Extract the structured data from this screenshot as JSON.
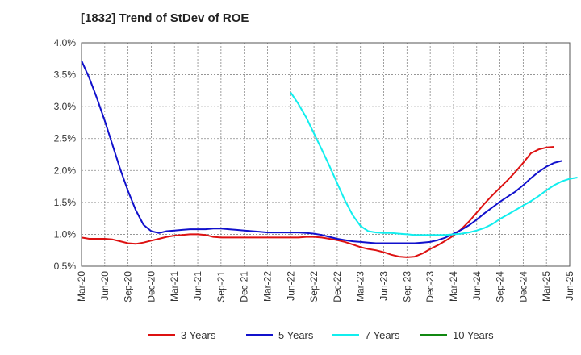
{
  "chart_data": {
    "type": "line",
    "title": "[1832]  Trend of StDev of ROE",
    "xlabel": "",
    "ylabel": "",
    "x_ticks": [
      "Mar-20",
      "Jun-20",
      "Sep-20",
      "Dec-20",
      "Mar-21",
      "Jun-21",
      "Sep-21",
      "Dec-21",
      "Mar-22",
      "Jun-22",
      "Sep-22",
      "Dec-22",
      "Mar-23",
      "Jun-23",
      "Sep-23",
      "Dec-23",
      "Mar-24",
      "Jun-24",
      "Sep-24",
      "Dec-24",
      "Mar-25",
      "Jun-25"
    ],
    "y_ticks": [
      "0.5%",
      "1.0%",
      "1.5%",
      "2.0%",
      "2.5%",
      "3.0%",
      "3.5%",
      "4.0%"
    ],
    "ylim": [
      0.5,
      4.0
    ],
    "grid": true,
    "legend_position": "bottom",
    "series": [
      {
        "name": "3 Years",
        "color": "#dd1111",
        "points": [
          [
            0,
            0.95
          ],
          [
            1,
            0.93
          ],
          [
            2,
            0.93
          ],
          [
            3,
            0.93
          ],
          [
            4,
            0.92
          ],
          [
            5,
            0.89
          ],
          [
            6,
            0.86
          ],
          [
            7,
            0.85
          ],
          [
            8,
            0.87
          ],
          [
            9,
            0.9
          ],
          [
            10,
            0.93
          ],
          [
            11,
            0.96
          ],
          [
            12,
            0.98
          ],
          [
            13,
            0.99
          ],
          [
            14,
            1.0
          ],
          [
            15,
            1.0
          ],
          [
            16,
            0.99
          ],
          [
            17,
            0.96
          ],
          [
            18,
            0.95
          ],
          [
            19,
            0.95
          ],
          [
            20,
            0.95
          ],
          [
            21,
            0.95
          ],
          [
            22,
            0.95
          ],
          [
            23,
            0.95
          ],
          [
            24,
            0.95
          ],
          [
            25,
            0.95
          ],
          [
            26,
            0.95
          ],
          [
            27,
            0.95
          ],
          [
            28,
            0.95
          ],
          [
            29,
            0.96
          ],
          [
            30,
            0.96
          ],
          [
            31,
            0.95
          ],
          [
            32,
            0.93
          ],
          [
            33,
            0.91
          ],
          [
            34,
            0.88
          ],
          [
            35,
            0.84
          ],
          [
            36,
            0.8
          ],
          [
            37,
            0.77
          ],
          [
            38,
            0.75
          ],
          [
            39,
            0.72
          ],
          [
            40,
            0.68
          ],
          [
            41,
            0.65
          ],
          [
            42,
            0.64
          ],
          [
            43,
            0.65
          ],
          [
            44,
            0.7
          ],
          [
            45,
            0.77
          ],
          [
            46,
            0.83
          ],
          [
            47,
            0.9
          ],
          [
            48,
            0.98
          ],
          [
            49,
            1.08
          ],
          [
            50,
            1.2
          ],
          [
            51,
            1.34
          ],
          [
            52,
            1.48
          ],
          [
            53,
            1.61
          ],
          [
            54,
            1.73
          ],
          [
            55,
            1.85
          ],
          [
            56,
            1.98
          ],
          [
            57,
            2.12
          ],
          [
            58,
            2.27
          ],
          [
            59,
            2.33
          ],
          [
            60,
            2.36
          ],
          [
            61,
            2.37
          ]
        ]
      },
      {
        "name": "5 Years",
        "color": "#1111cc",
        "points": [
          [
            0,
            3.72
          ],
          [
            1,
            3.45
          ],
          [
            2,
            3.13
          ],
          [
            3,
            2.78
          ],
          [
            4,
            2.4
          ],
          [
            5,
            2.02
          ],
          [
            6,
            1.68
          ],
          [
            7,
            1.38
          ],
          [
            8,
            1.15
          ],
          [
            9,
            1.05
          ],
          [
            10,
            1.02
          ],
          [
            11,
            1.05
          ],
          [
            12,
            1.06
          ],
          [
            13,
            1.07
          ],
          [
            14,
            1.08
          ],
          [
            15,
            1.08
          ],
          [
            16,
            1.08
          ],
          [
            17,
            1.09
          ],
          [
            18,
            1.09
          ],
          [
            19,
            1.08
          ],
          [
            20,
            1.07
          ],
          [
            21,
            1.06
          ],
          [
            22,
            1.05
          ],
          [
            23,
            1.04
          ],
          [
            24,
            1.03
          ],
          [
            25,
            1.03
          ],
          [
            26,
            1.03
          ],
          [
            27,
            1.03
          ],
          [
            28,
            1.03
          ],
          [
            29,
            1.02
          ],
          [
            30,
            1.01
          ],
          [
            31,
            0.99
          ],
          [
            32,
            0.96
          ],
          [
            33,
            0.93
          ],
          [
            34,
            0.91
          ],
          [
            35,
            0.89
          ],
          [
            36,
            0.88
          ],
          [
            37,
            0.87
          ],
          [
            38,
            0.86
          ],
          [
            39,
            0.86
          ],
          [
            40,
            0.86
          ],
          [
            41,
            0.86
          ],
          [
            42,
            0.86
          ],
          [
            43,
            0.86
          ],
          [
            44,
            0.87
          ],
          [
            45,
            0.88
          ],
          [
            46,
            0.91
          ],
          [
            47,
            0.95
          ],
          [
            48,
            1.01
          ],
          [
            49,
            1.07
          ],
          [
            50,
            1.14
          ],
          [
            51,
            1.23
          ],
          [
            52,
            1.33
          ],
          [
            53,
            1.42
          ],
          [
            54,
            1.51
          ],
          [
            55,
            1.59
          ],
          [
            56,
            1.67
          ],
          [
            57,
            1.77
          ],
          [
            58,
            1.88
          ],
          [
            59,
            1.98
          ],
          [
            60,
            2.06
          ],
          [
            61,
            2.12
          ],
          [
            62,
            2.15
          ]
        ]
      },
      {
        "name": "7 Years",
        "color": "#11eeee",
        "points": [
          [
            27,
            3.22
          ],
          [
            28,
            3.04
          ],
          [
            29,
            2.83
          ],
          [
            30,
            2.58
          ],
          [
            31,
            2.33
          ],
          [
            32,
            2.07
          ],
          [
            33,
            1.8
          ],
          [
            34,
            1.53
          ],
          [
            35,
            1.3
          ],
          [
            36,
            1.13
          ],
          [
            37,
            1.05
          ],
          [
            38,
            1.03
          ],
          [
            39,
            1.02
          ],
          [
            40,
            1.02
          ],
          [
            41,
            1.01
          ],
          [
            42,
            1.0
          ],
          [
            43,
            0.99
          ],
          [
            44,
            0.99
          ],
          [
            45,
            0.99
          ],
          [
            46,
            0.99
          ],
          [
            47,
            0.99
          ],
          [
            48,
            1.0
          ],
          [
            49,
            1.01
          ],
          [
            50,
            1.03
          ],
          [
            51,
            1.06
          ],
          [
            52,
            1.1
          ],
          [
            53,
            1.16
          ],
          [
            54,
            1.24
          ],
          [
            55,
            1.31
          ],
          [
            56,
            1.38
          ],
          [
            57,
            1.45
          ],
          [
            58,
            1.52
          ],
          [
            59,
            1.6
          ],
          [
            60,
            1.69
          ],
          [
            61,
            1.77
          ],
          [
            62,
            1.83
          ],
          [
            63,
            1.87
          ],
          [
            64,
            1.89
          ]
        ]
      },
      {
        "name": "10 Years",
        "color": "#118811",
        "points": []
      }
    ]
  }
}
